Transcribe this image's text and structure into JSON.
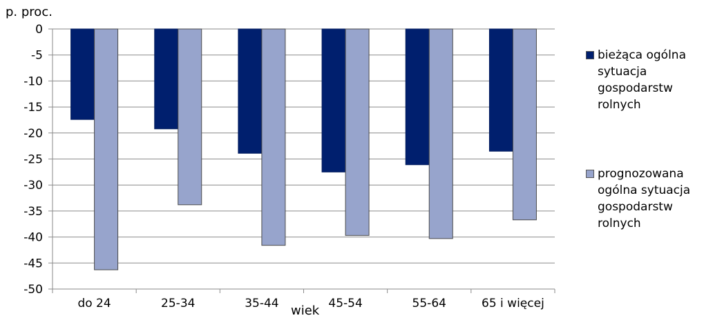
{
  "chart_data": {
    "type": "bar",
    "ylabel": "p. proc.",
    "xlabel": "wiek",
    "categories": [
      "do 24",
      "25-34",
      "35-44",
      "45-54",
      "55-64",
      "65 i więcej"
    ],
    "series": [
      {
        "name": "bieżąca ogólna sytuacja gospodarstw rolnych",
        "color": "#001f6e",
        "values": [
          -17.4,
          -19.2,
          -23.9,
          -27.5,
          -26.1,
          -23.5
        ]
      },
      {
        "name": "prognozowana ogólna sytuacja gospodarstw rolnych",
        "color": "#97a4cc",
        "values": [
          -46.3,
          -33.8,
          -41.6,
          -39.7,
          -40.3,
          -36.7
        ]
      }
    ],
    "ylim": [
      -50,
      0
    ],
    "yticks": [
      "0",
      "-5",
      "-10",
      "-15",
      "-20",
      "-25",
      "-30",
      "-35",
      "-40",
      "-45",
      "-50"
    ],
    "grid": true,
    "legend_position": "right"
  }
}
